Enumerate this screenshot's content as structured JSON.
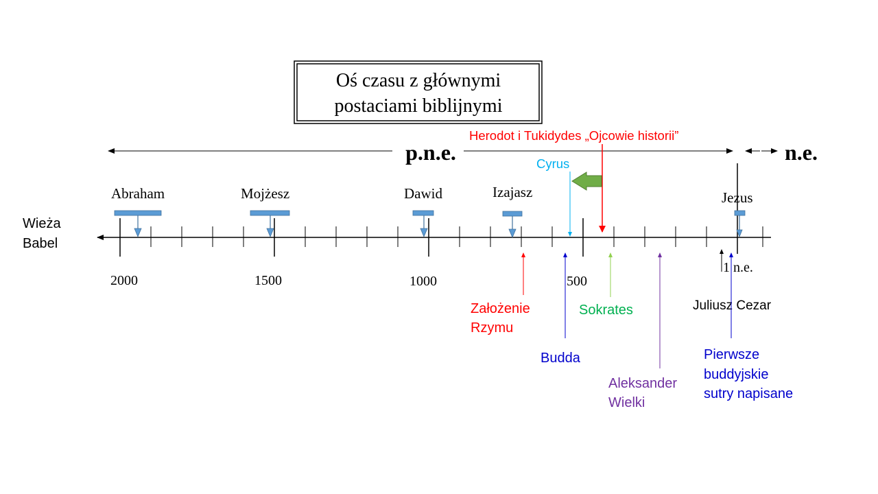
{
  "slide": {
    "title_line1": "Oś czasu z głównymi",
    "title_line2": "postaciami biblijnymi"
  },
  "eras": {
    "bce": "p.n.e.",
    "ce": "n.e."
  },
  "axis_start_label_line1": "Wieża",
  "axis_start_label_line2": "Babel",
  "year_labels": [
    "2000",
    "1500",
    "1000",
    "500",
    "1 n.e."
  ],
  "figures": [
    {
      "name": "Abraham"
    },
    {
      "name": "Mojżesz"
    },
    {
      "name": "Dawid"
    },
    {
      "name": "Izajasz"
    },
    {
      "name": "Jezus"
    }
  ],
  "events": {
    "herodot": "Herodot i Tukidydes „Ojcowie historii”",
    "cyrus": "Cyrus",
    "zalozenie_line1": "Założenie",
    "zalozenie_line2": "Rzymu",
    "budda": "Budda",
    "sokrates": "Sokrates",
    "aleksander_line1": "Aleksander",
    "aleksander_line2": "Wielki",
    "juliusz": "Juliusz Cezar",
    "sutry_line1": "Pierwsze",
    "sutry_line2": "buddyjskie",
    "sutry_line3": "sutry napisane"
  },
  "colors": {
    "axis": "#000000",
    "figure_bar": "#5b9bd5",
    "figure_bar_border": "#41719c",
    "herodot": "#ff0000",
    "cyrus": "#00b0f0",
    "zalozenie": "#ff0000",
    "budda": "#0000cc",
    "sokrates": "#00b050",
    "sokrates_arrow": "#92d050",
    "aleksander": "#7030a0",
    "juliusz": "#000000",
    "sutry": "#0000cc",
    "green_arrow": "#70ad47"
  }
}
